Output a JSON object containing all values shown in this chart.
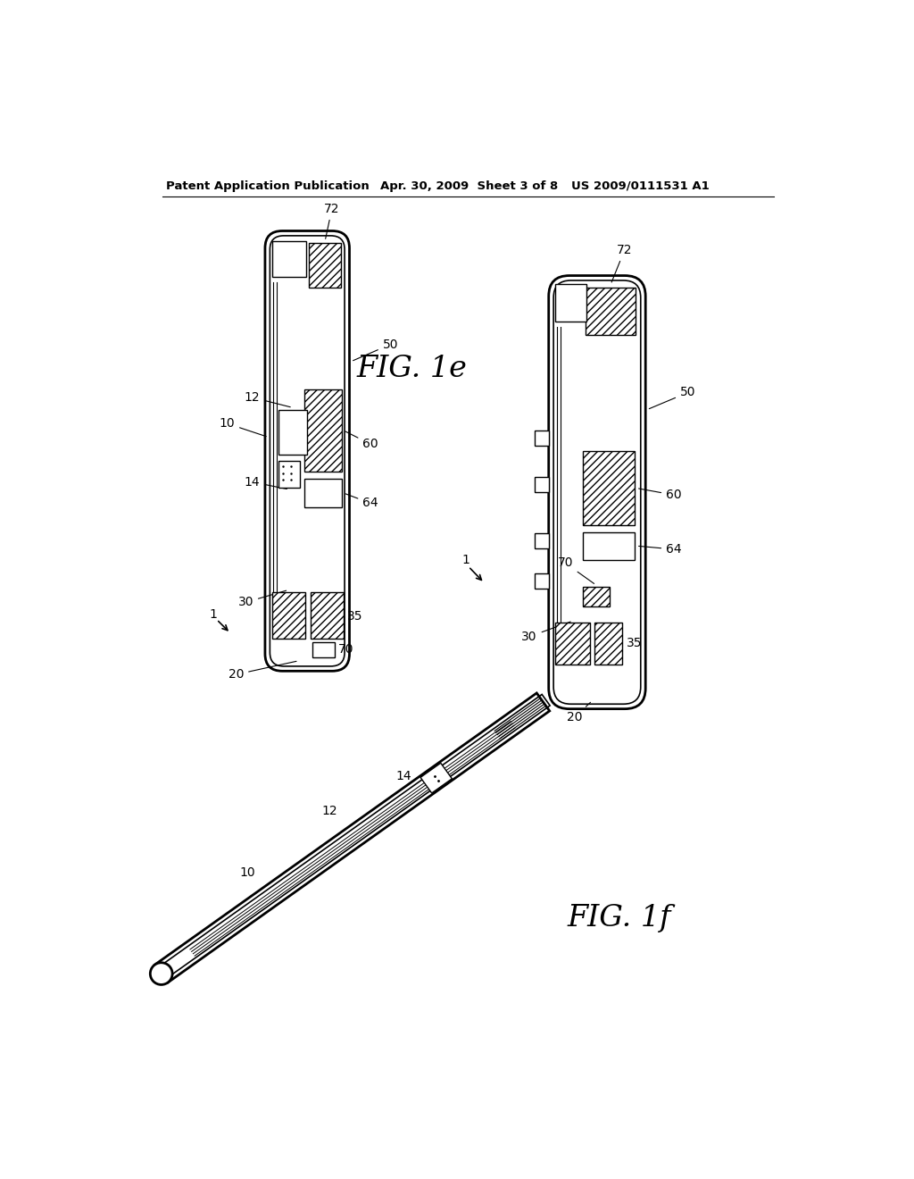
{
  "background_color": "#ffffff",
  "header_text": "Patent Application Publication",
  "header_date": "Apr. 30, 2009  Sheet 3 of 8",
  "header_patent": "US 2009/0111531 A1",
  "fig1e_label": "FIG. 1e",
  "fig1f_label": "FIG. 1f"
}
